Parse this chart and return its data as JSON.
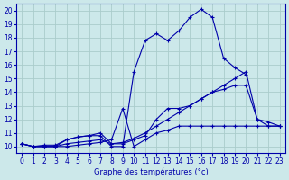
{
  "title": "Graphe des températures (°c)",
  "x_ticks": [
    0,
    1,
    2,
    3,
    4,
    5,
    6,
    7,
    8,
    9,
    10,
    11,
    12,
    13,
    14,
    15,
    16,
    17,
    18,
    19,
    20,
    21,
    22,
    23
  ],
  "ylim": [
    9.5,
    20.5
  ],
  "xlim": [
    -0.5,
    23.5
  ],
  "y_ticks": [
    10,
    11,
    12,
    13,
    14,
    15,
    16,
    17,
    18,
    19,
    20
  ],
  "background_color": "#cce8ea",
  "grid_color": "#aacccc",
  "line_color": "#0000aa",
  "lines": [
    [
      10.2,
      10.0,
      10.0,
      10.0,
      10.5,
      10.7,
      10.8,
      10.8,
      10.0,
      10.0,
      15.5,
      17.8,
      18.3,
      17.8,
      18.5,
      19.5,
      20.1,
      19.5,
      16.5,
      15.8,
      15.3,
      null,
      null,
      null
    ],
    [
      10.2,
      10.0,
      10.1,
      10.1,
      10.5,
      10.7,
      10.8,
      11.0,
      10.2,
      10.2,
      10.5,
      10.8,
      12.0,
      12.8,
      12.8,
      13.0,
      13.5,
      14.0,
      14.5,
      15.0,
      15.5,
      12.0,
      11.8,
      11.5
    ],
    [
      10.2,
      10.0,
      10.0,
      10.0,
      10.2,
      10.3,
      10.4,
      10.5,
      10.2,
      10.3,
      10.6,
      11.0,
      11.5,
      12.0,
      12.5,
      13.0,
      13.5,
      14.0,
      14.2,
      14.5,
      14.5,
      12.0,
      11.5,
      11.5
    ],
    [
      10.2,
      10.0,
      10.0,
      10.0,
      10.0,
      10.1,
      10.2,
      10.3,
      10.5,
      12.8,
      10.0,
      10.5,
      11.0,
      11.2,
      11.5,
      11.5,
      11.5,
      11.5,
      11.5,
      11.5,
      11.5,
      11.5,
      11.5,
      11.5
    ]
  ]
}
